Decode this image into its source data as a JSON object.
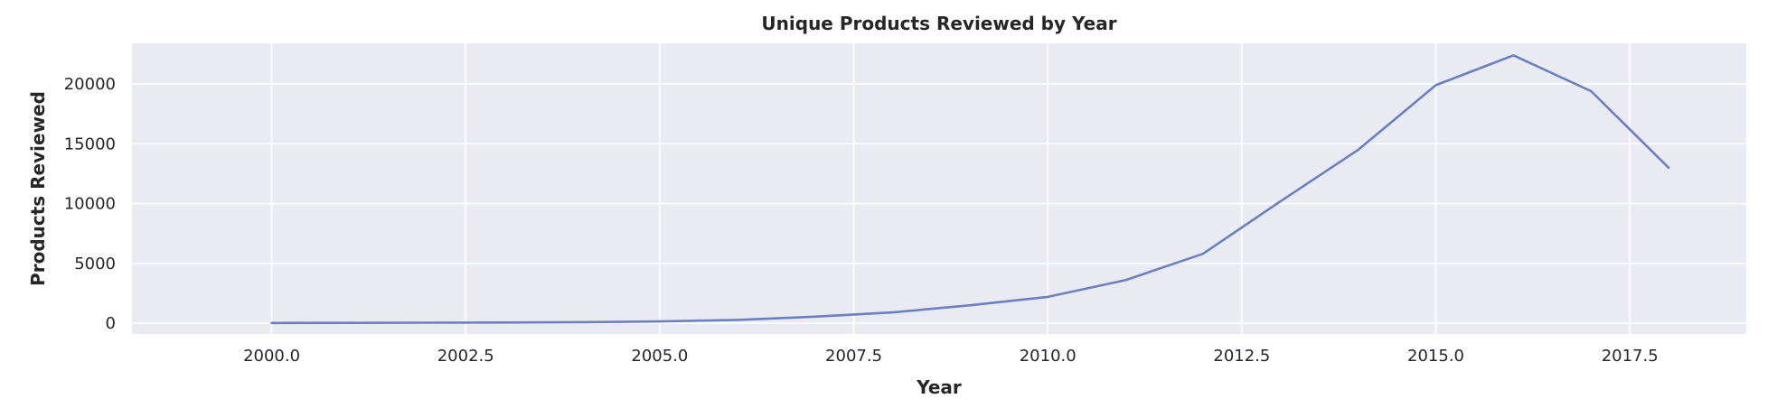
{
  "chart_data": {
    "type": "line",
    "title": "Unique Products Reviewed by Year",
    "xlabel": "Year",
    "ylabel": "Products Reviewed",
    "xlim": [
      1998.2,
      2019.0
    ],
    "ylim": [
      -900,
      23400
    ],
    "x_ticks": [
      2000.0,
      2002.5,
      2005.0,
      2007.5,
      2010.0,
      2012.5,
      2015.0,
      2017.5
    ],
    "x_tick_labels": [
      "2000.0",
      "2002.5",
      "2005.0",
      "2007.5",
      "2010.0",
      "2012.5",
      "2015.0",
      "2017.5"
    ],
    "y_ticks": [
      0,
      5000,
      10000,
      15000,
      20000
    ],
    "y_tick_labels": [
      "0",
      "5000",
      "10000",
      "15000",
      "20000"
    ],
    "grid": true,
    "series": [
      {
        "x": [
          2000,
          2001,
          2002,
          2003,
          2004,
          2005,
          2006,
          2007,
          2008,
          2009,
          2010,
          2011,
          2012,
          2013,
          2014,
          2015,
          2016,
          2017,
          2018
        ],
        "y": [
          20,
          25,
          40,
          60,
          90,
          150,
          280,
          550,
          900,
          1500,
          2200,
          3600,
          5800,
          10200,
          14500,
          19900,
          22400,
          19400,
          13000
        ]
      }
    ],
    "colors": {
      "line": "#6a80bf",
      "plot_background": "#eaeaf2",
      "grid": "#ffffff"
    }
  }
}
